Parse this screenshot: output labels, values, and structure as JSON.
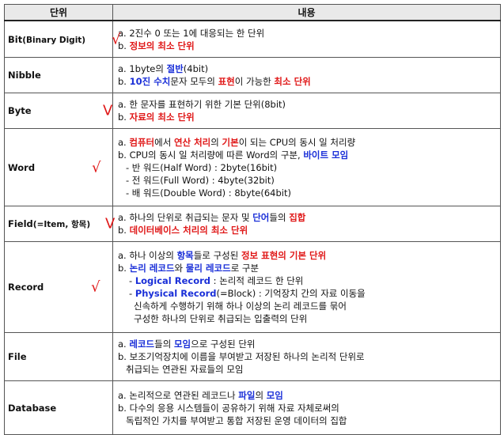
{
  "header": {
    "col_unit": "단위",
    "col_content": "내용"
  },
  "rows": [
    {
      "name": "Bit",
      "unit_main": "Bit",
      "unit_sub": "(Binary Digit)",
      "check": "√",
      "lines": [
        [
          {
            "t": "a. 2진수 0 또는 1에 대응되는 한 단위"
          }
        ],
        [
          {
            "t": "b. "
          },
          {
            "t": "정보의 최소 단위",
            "c": "red"
          }
        ]
      ]
    },
    {
      "name": "Nibble",
      "unit_main": "Nibble",
      "unit_sub": "",
      "check": "",
      "lines": [
        [
          {
            "t": "a. 1byte의 "
          },
          {
            "t": "절반",
            "c": "blue"
          },
          {
            "t": "(4bit)"
          }
        ],
        [
          {
            "t": "b. "
          },
          {
            "t": "10진 수치",
            "c": "blue"
          },
          {
            "t": "문자 모두의 "
          },
          {
            "t": "표현",
            "c": "red"
          },
          {
            "t": "이 가능한 "
          },
          {
            "t": "최소 단위",
            "c": "red"
          }
        ]
      ]
    },
    {
      "name": "Byte",
      "unit_main": "Byte",
      "unit_sub": "",
      "check": "V",
      "lines": [
        [
          {
            "t": "a. 한 문자를 표현하기 위한 기본 단위(8bit)"
          }
        ],
        [
          {
            "t": "b. "
          },
          {
            "t": "자료의 최소 단위",
            "c": "red"
          }
        ]
      ]
    },
    {
      "name": "Word",
      "unit_main": "Word",
      "unit_sub": "",
      "check": "√",
      "lines": [
        [
          {
            "t": "a. "
          },
          {
            "t": "컴퓨터",
            "c": "red"
          },
          {
            "t": "에서 "
          },
          {
            "t": "연산 처리",
            "c": "red"
          },
          {
            "t": "의 "
          },
          {
            "t": "기본",
            "c": "red"
          },
          {
            "t": "이 되는 CPU의 동시 일 처리량"
          }
        ],
        [
          {
            "t": "b. CPU의 동시 일 처리량에 따른 Word의 구분, "
          },
          {
            "t": "바이트 모임",
            "c": "blue"
          }
        ],
        [
          {
            "t": "- 반 워드(Half Word) : 2byte(16bit)",
            "i": 1
          }
        ],
        [
          {
            "t": "- 전 워드(Full Word) : 4byte(32bit)",
            "i": 1
          }
        ],
        [
          {
            "t": "- 배 워드(Double Word) : 8byte(64bit)",
            "i": 1
          }
        ]
      ]
    },
    {
      "name": "Field",
      "unit_main": "Field",
      "unit_sub": "(=Item, 항목)",
      "check": "V",
      "lines": [
        [
          {
            "t": "a. 하나의 단위로 취급되는 문자 및 "
          },
          {
            "t": "단어",
            "c": "blue"
          },
          {
            "t": "들의 "
          },
          {
            "t": "집합",
            "c": "red"
          }
        ],
        [
          {
            "t": "b. "
          },
          {
            "t": "데이터베이스 처리의 최소 단위",
            "c": "red"
          }
        ]
      ]
    },
    {
      "name": "Record",
      "unit_main": "Record",
      "unit_sub": "",
      "check": "√",
      "lines": [
        [
          {
            "t": "a. 하나 이상의 "
          },
          {
            "t": "항목",
            "c": "blue"
          },
          {
            "t": "들로 구성된 "
          },
          {
            "t": "정보 표현의 기본 단위",
            "c": "red"
          }
        ],
        [
          {
            "t": "b. "
          },
          {
            "t": "논리 레코드",
            "c": "blue"
          },
          {
            "t": "와 "
          },
          {
            "t": "물리 레코드",
            "c": "blue"
          },
          {
            "t": "로 구분"
          }
        ],
        [
          {
            "t": "- ",
            "i": 3
          },
          {
            "t": "Logical Record",
            "c": "blue"
          },
          {
            "t": " : 논리적 레코드 한 단위"
          }
        ],
        [
          {
            "t": "- ",
            "i": 3
          },
          {
            "t": "Physical Record",
            "c": "blue"
          },
          {
            "t": "(=Block) : 기억장치 간의 자료 이동을"
          }
        ],
        [
          {
            "t": "신속하게 수행하기 위해 하나 이상의 논리 레코드를 묶어",
            "i": 2
          }
        ],
        [
          {
            "t": "구성한 하나의 단위로 취급되는 입출력의 단위",
            "i": 2
          }
        ]
      ]
    },
    {
      "name": "File",
      "unit_main": "File",
      "unit_sub": "",
      "check": "",
      "lines": [
        [
          {
            "t": "a. "
          },
          {
            "t": "레코드",
            "c": "blue"
          },
          {
            "t": "들의 "
          },
          {
            "t": "모임",
            "c": "blue"
          },
          {
            "t": "으로 구성된 단위"
          }
        ],
        [
          {
            "t": "b. 보조기억장치에 이름을 부여받고 저장된 하나의 논리적 단위로"
          }
        ],
        [
          {
            "t": "취급되는 연관된 자료들의 모임",
            "i": 1
          }
        ]
      ]
    },
    {
      "name": "Database",
      "unit_main": "Database",
      "unit_sub": "",
      "check": "",
      "lines": [
        [
          {
            "t": "a. 논리적으로 연관된 레코드나 "
          },
          {
            "t": "파일",
            "c": "blue"
          },
          {
            "t": "의 "
          },
          {
            "t": "모임",
            "c": "blue"
          }
        ],
        [
          {
            "t": "b. 다수의 응용 시스템들이 공유하기 위해 자료 자체로써의"
          }
        ],
        [
          {
            "t": "독립적인 가치를 부여받고 통합 저장된 운영 데이터의 집합",
            "i": 1
          }
        ]
      ]
    }
  ]
}
